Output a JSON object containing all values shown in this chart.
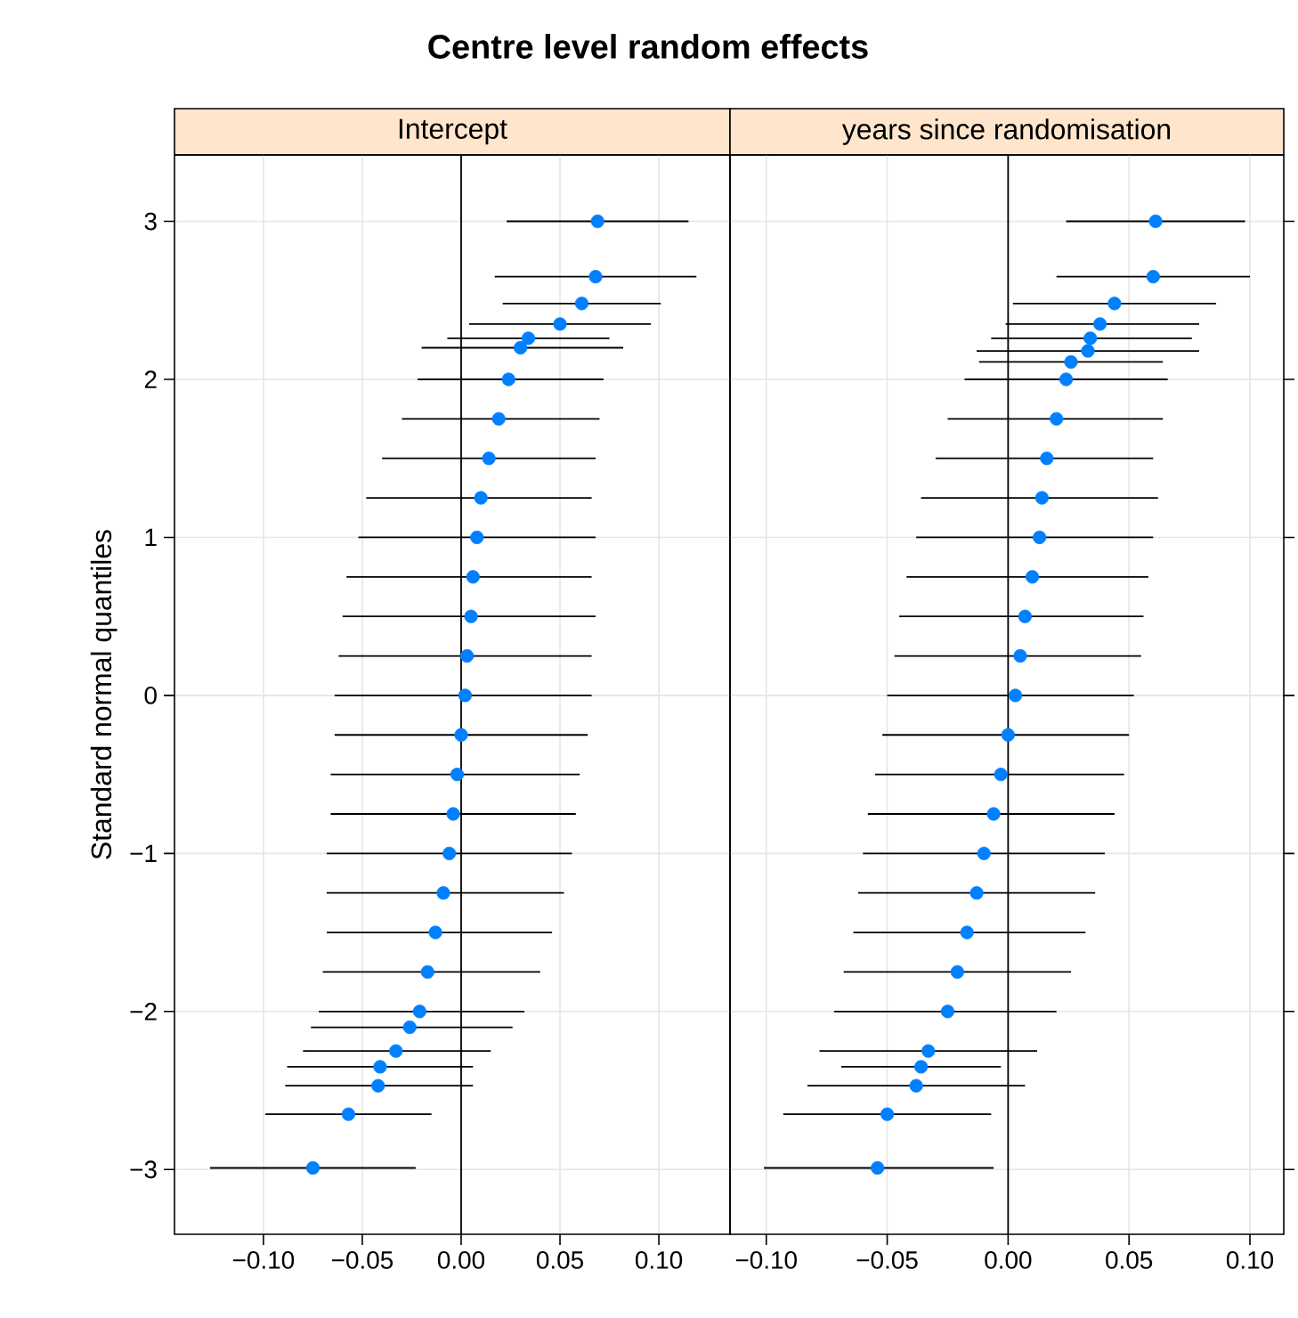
{
  "chart_data": [
    {
      "type": "scatter",
      "title": "Centre level random effects",
      "subtitle": "Intercept",
      "ylabel": "Standard normal quantiles",
      "color": "#0080ff",
      "grid": true,
      "x": [
        0.069,
        0.068,
        0.061,
        0.05,
        0.034,
        0.03,
        0.024,
        0.019,
        0.014,
        0.01,
        0.008,
        0.006,
        0.005,
        0.003,
        0.002,
        0.0,
        -0.002,
        -0.004,
        -0.006,
        -0.009,
        -0.013,
        -0.017,
        -0.021,
        -0.026,
        -0.033,
        -0.041,
        -0.042,
        -0.057,
        -0.075
      ],
      "values": [
        3.0,
        2.65,
        2.48,
        2.35,
        2.26,
        2.2,
        2.0,
        1.75,
        1.5,
        1.25,
        1.0,
        0.75,
        0.5,
        0.25,
        0.0,
        -0.25,
        -0.5,
        -0.75,
        -1.0,
        -1.25,
        -1.5,
        -1.75,
        -2.0,
        -2.1,
        -2.25,
        -2.35,
        -2.47,
        -2.65,
        -2.99
      ],
      "xerrors": [
        [
          0.023,
          0.115
        ],
        [
          0.017,
          0.119
        ],
        [
          0.021,
          0.101
        ],
        [
          0.004,
          0.096
        ],
        [
          -0.007,
          0.075
        ],
        [
          -0.02,
          0.082
        ],
        [
          -0.022,
          0.072
        ],
        [
          -0.03,
          0.07
        ],
        [
          -0.04,
          0.068
        ],
        [
          -0.048,
          0.066
        ],
        [
          -0.052,
          0.068
        ],
        [
          -0.058,
          0.066
        ],
        [
          -0.06,
          0.068
        ],
        [
          -0.062,
          0.066
        ],
        [
          -0.064,
          0.066
        ],
        [
          -0.064,
          0.064
        ],
        [
          -0.066,
          0.06
        ],
        [
          -0.066,
          0.058
        ],
        [
          -0.068,
          0.056
        ],
        [
          -0.068,
          0.052
        ],
        [
          -0.068,
          0.046
        ],
        [
          -0.07,
          0.04
        ],
        [
          -0.072,
          0.032
        ],
        [
          -0.076,
          0.026
        ],
        [
          -0.08,
          0.015
        ],
        [
          -0.088,
          0.006
        ],
        [
          -0.089,
          0.006
        ],
        [
          -0.099,
          -0.015
        ],
        [
          -0.127,
          -0.023
        ]
      ],
      "xlim": [
        -0.145,
        0.136
      ],
      "xticks": [
        {
          "value": -0.1,
          "label": "−0.10"
        },
        {
          "value": -0.05,
          "label": "−0.05"
        },
        {
          "value": 0,
          "label": "0.00"
        },
        {
          "value": 0.05,
          "label": "0.05"
        },
        {
          "value": 0.1,
          "label": "0.10"
        }
      ],
      "ylim": [
        -3.41,
        3.42
      ],
      "yticks": [
        {
          "value": -3,
          "label": "−3"
        },
        {
          "value": -2,
          "label": "−2"
        },
        {
          "value": -1,
          "label": "−1"
        },
        {
          "value": 0,
          "label": "0"
        },
        {
          "value": 1,
          "label": "1"
        },
        {
          "value": 2,
          "label": "2"
        },
        {
          "value": 3,
          "label": "3"
        }
      ],
      "ref_lines": [
        {
          "axis": "x",
          "value": 0,
          "color": "#000000"
        }
      ]
    },
    {
      "type": "scatter",
      "subtitle": "years since randomisation",
      "color": "#0080ff",
      "grid": true,
      "tick_labels": "x",
      "x": [
        0.061,
        0.06,
        0.044,
        0.038,
        0.034,
        0.033,
        0.026,
        0.024,
        0.02,
        0.016,
        0.014,
        0.013,
        0.01,
        0.007,
        0.005,
        0.003,
        0.0,
        -0.003,
        -0.006,
        -0.01,
        -0.013,
        -0.017,
        -0.021,
        -0.025,
        -0.033,
        -0.036,
        -0.038,
        -0.05,
        -0.054
      ],
      "values": [
        3.0,
        2.65,
        2.48,
        2.35,
        2.26,
        2.18,
        2.11,
        2.0,
        1.75,
        1.5,
        1.25,
        1.0,
        0.75,
        0.5,
        0.25,
        0.0,
        -0.25,
        -0.5,
        -0.75,
        -1.0,
        -1.25,
        -1.5,
        -1.75,
        -2.0,
        -2.25,
        -2.35,
        -2.47,
        -2.65,
        -2.99
      ],
      "xerrors": [
        [
          0.024,
          0.098
        ],
        [
          0.02,
          0.1
        ],
        [
          0.002,
          0.086
        ],
        [
          -0.001,
          0.079
        ],
        [
          -0.007,
          0.076
        ],
        [
          -0.013,
          0.079
        ],
        [
          -0.012,
          0.064
        ],
        [
          -0.018,
          0.066
        ],
        [
          -0.025,
          0.064
        ],
        [
          -0.03,
          0.06
        ],
        [
          -0.036,
          0.062
        ],
        [
          -0.038,
          0.06
        ],
        [
          -0.042,
          0.058
        ],
        [
          -0.045,
          0.056
        ],
        [
          -0.047,
          0.055
        ],
        [
          -0.05,
          0.052
        ],
        [
          -0.052,
          0.05
        ],
        [
          -0.055,
          0.048
        ],
        [
          -0.058,
          0.044
        ],
        [
          -0.06,
          0.04
        ],
        [
          -0.062,
          0.036
        ],
        [
          -0.064,
          0.032
        ],
        [
          -0.068,
          0.026
        ],
        [
          -0.072,
          0.02
        ],
        [
          -0.078,
          0.012
        ],
        [
          -0.069,
          -0.003
        ],
        [
          -0.083,
          0.007
        ],
        [
          -0.093,
          -0.007
        ],
        [
          -0.101,
          -0.006
        ]
      ],
      "xlim": [
        -0.115,
        0.114
      ],
      "xticks": [
        {
          "value": -0.1,
          "label": "−0.10"
        },
        {
          "value": -0.05,
          "label": "−0.05"
        },
        {
          "value": 0,
          "label": "0.00"
        },
        {
          "value": 0.05,
          "label": "0.05"
        },
        {
          "value": 0.1,
          "label": "0.10"
        }
      ],
      "ylim": [
        -3.41,
        3.42
      ],
      "yticks": [
        {
          "value": -3,
          "label": null
        },
        {
          "value": -2,
          "label": null
        },
        {
          "value": -1,
          "label": null
        },
        {
          "value": 0,
          "label": null
        },
        {
          "value": 1,
          "label": null
        },
        {
          "value": 2,
          "label": null
        },
        {
          "value": 3,
          "label": null
        }
      ],
      "ref_lines": [
        {
          "axis": "x",
          "value": 0,
          "color": "#000000"
        }
      ]
    }
  ]
}
